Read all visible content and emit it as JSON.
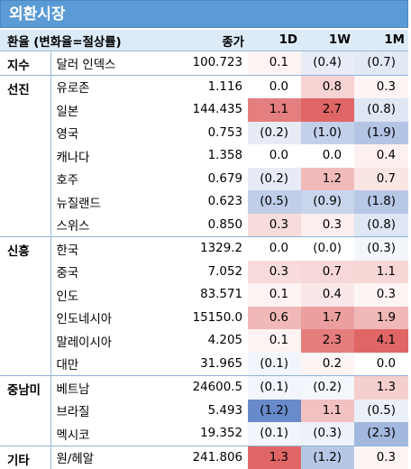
{
  "title": "외환시장",
  "header": {
    "label": "환율 (변화율=절상률)",
    "close": "종가",
    "d1": "1D",
    "w1": "1W",
    "m1": "1M"
  },
  "colors": {
    "title_bg": "#5b9bd5",
    "header_bg": "#ddebf7",
    "positive": "#e06666",
    "negative": "#5b80c6"
  },
  "groups": [
    {
      "name": "지수",
      "rows": [
        {
          "currency": "달러 인덱스",
          "close": "100.723",
          "d1": "0.1",
          "w1": "(0.4)",
          "m1": "(0.7)",
          "v": [
            0.1,
            -0.4,
            -0.7
          ]
        }
      ]
    },
    {
      "name": "선진",
      "rows": [
        {
          "currency": "유로존",
          "close": "1.116",
          "d1": "0.0",
          "w1": "0.8",
          "m1": "0.3",
          "v": [
            0.0,
            0.8,
            0.3
          ]
        },
        {
          "currency": "일본",
          "close": "144.435",
          "d1": "1.1",
          "w1": "2.7",
          "m1": "(0.8)",
          "v": [
            1.1,
            2.7,
            -0.8
          ]
        },
        {
          "currency": "영국",
          "close": "0.753",
          "d1": "(0.2)",
          "w1": "(1.0)",
          "m1": "(1.9)",
          "v": [
            -0.2,
            -1.0,
            -1.9
          ]
        },
        {
          "currency": "캐나다",
          "close": "1.358",
          "d1": "0.0",
          "w1": "0.0",
          "m1": "0.4",
          "v": [
            0.0,
            0.0,
            0.4
          ]
        },
        {
          "currency": "호주",
          "close": "0.679",
          "d1": "(0.2)",
          "w1": "1.2",
          "m1": "0.7",
          "v": [
            -0.2,
            1.2,
            0.7
          ]
        },
        {
          "currency": "뉴질랜드",
          "close": "0.623",
          "d1": "(0.5)",
          "w1": "(0.9)",
          "m1": "(1.8)",
          "v": [
            -0.5,
            -0.9,
            -1.8
          ]
        },
        {
          "currency": "스위스",
          "close": "0.850",
          "d1": "0.3",
          "w1": "0.3",
          "m1": "(0.8)",
          "v": [
            0.3,
            0.3,
            -0.8
          ]
        }
      ]
    },
    {
      "name": "신흥",
      "rows": [
        {
          "currency": "한국",
          "close": "1329.2",
          "d1": "0.0",
          "w1": "(0.0)",
          "m1": "(0.3)",
          "v": [
            0.0,
            -0.0,
            -0.3
          ]
        },
        {
          "currency": "중국",
          "close": "7.052",
          "d1": "0.3",
          "w1": "0.7",
          "m1": "1.1",
          "v": [
            0.3,
            0.7,
            1.1
          ]
        },
        {
          "currency": "인도",
          "close": "83.571",
          "d1": "0.1",
          "w1": "0.4",
          "m1": "0.3",
          "v": [
            0.1,
            0.4,
            0.3
          ]
        },
        {
          "currency": "인도네시아",
          "close": "15150.0",
          "d1": "0.6",
          "w1": "1.7",
          "m1": "1.9",
          "v": [
            0.6,
            1.7,
            1.9
          ]
        },
        {
          "currency": "말레이시아",
          "close": "4.205",
          "d1": "0.1",
          "w1": "2.3",
          "m1": "4.1",
          "v": [
            0.1,
            2.3,
            4.1
          ]
        },
        {
          "currency": "대만",
          "close": "31.965",
          "d1": "(0.1)",
          "w1": "0.2",
          "m1": "0.0",
          "v": [
            -0.1,
            0.2,
            0.0
          ]
        }
      ]
    },
    {
      "name": "중남미",
      "rows": [
        {
          "currency": "베트남",
          "close": "24600.5",
          "d1": "(0.1)",
          "w1": "(0.2)",
          "m1": "1.3",
          "v": [
            -0.1,
            -0.2,
            1.3
          ]
        },
        {
          "currency": "브라질",
          "close": "5.493",
          "d1": "(1.2)",
          "w1": "1.1",
          "m1": "(0.5)",
          "v": [
            -1.2,
            1.1,
            -0.5
          ]
        },
        {
          "currency": "멕시코",
          "close": "19.352",
          "d1": "(0.1)",
          "w1": "(0.3)",
          "m1": "(2.3)",
          "v": [
            -0.1,
            -0.3,
            -2.3
          ]
        }
      ]
    },
    {
      "name": "기타",
      "rows": [
        {
          "currency": "원/헤알",
          "close": "241.806",
          "d1": "1.3",
          "w1": "(1.2)",
          "m1": "0.3",
          "v": [
            1.3,
            -1.2,
            0.3
          ]
        }
      ]
    }
  ]
}
